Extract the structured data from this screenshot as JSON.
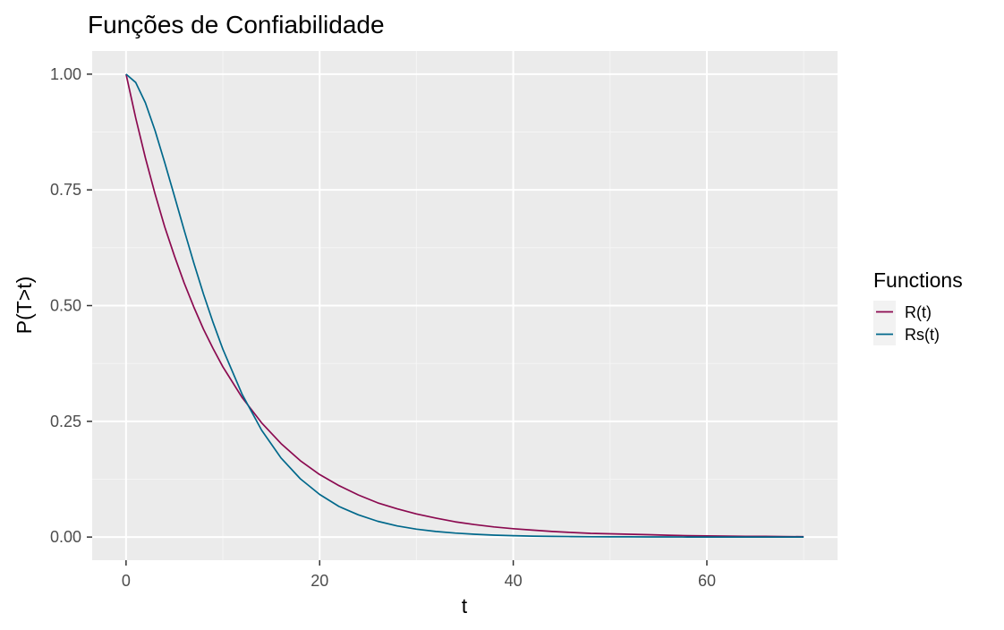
{
  "chart_data": {
    "type": "line",
    "title": "Funções de Confiabilidade",
    "xlabel": "t",
    "ylabel": "P(T>t)",
    "xlim": [
      -3.5,
      73.5
    ],
    "ylim": [
      -0.05,
      1.05
    ],
    "x_ticks": [
      0,
      20,
      40,
      60
    ],
    "y_ticks": [
      0.0,
      0.25,
      0.5,
      0.75,
      1.0
    ],
    "x_tick_labels": [
      "0",
      "20",
      "40",
      "60"
    ],
    "y_tick_labels": [
      "0.00",
      "0.25",
      "0.50",
      "0.75",
      "1.00"
    ],
    "grid": true,
    "legend": {
      "title": "Functions",
      "position": "right"
    },
    "x": [
      0,
      1,
      2,
      3,
      4,
      5,
      6,
      7,
      8,
      9,
      10,
      12,
      14,
      16,
      18,
      20,
      22,
      24,
      26,
      28,
      30,
      32,
      34,
      36,
      38,
      40,
      42,
      44,
      46,
      48,
      50,
      52,
      54,
      56,
      58,
      60,
      62,
      64,
      66,
      68,
      70
    ],
    "series": [
      {
        "name": "R(t)",
        "color": "#8b0a50",
        "values": [
          1.0,
          0.905,
          0.819,
          0.741,
          0.67,
          0.607,
          0.549,
          0.497,
          0.449,
          0.407,
          0.368,
          0.301,
          0.247,
          0.202,
          0.165,
          0.135,
          0.111,
          0.091,
          0.074,
          0.061,
          0.05,
          0.041,
          0.033,
          0.027,
          0.022,
          0.018,
          0.015,
          0.012,
          0.01,
          0.008,
          0.007,
          0.006,
          0.005,
          0.004,
          0.003,
          0.0025,
          0.002,
          0.0017,
          0.0014,
          0.0011,
          0.0009
        ]
      },
      {
        "name": "Rs(t)",
        "color": "#00688b",
        "values": [
          1.0,
          0.982,
          0.938,
          0.878,
          0.809,
          0.736,
          0.663,
          0.592,
          0.525,
          0.463,
          0.406,
          0.308,
          0.231,
          0.171,
          0.126,
          0.092,
          0.066,
          0.048,
          0.034,
          0.024,
          0.017,
          0.012,
          0.0085,
          0.006,
          0.0042,
          0.003,
          0.002,
          0.0014,
          0.001,
          0.0007,
          0.0005,
          0.0004,
          0.0003,
          0.0002,
          0.0001,
          0.0001,
          0.0,
          0.0,
          0.0,
          0.0,
          0.0
        ]
      }
    ]
  }
}
